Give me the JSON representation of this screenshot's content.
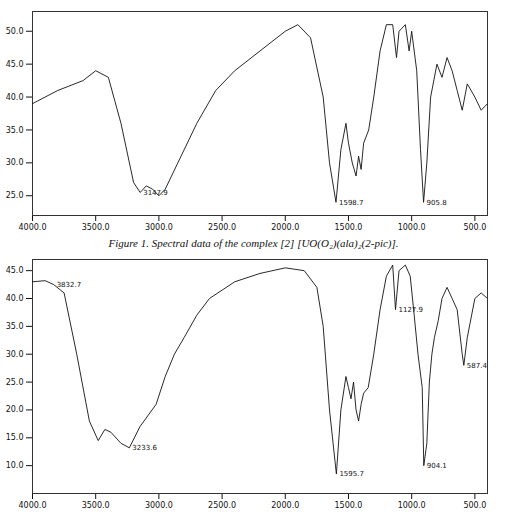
{
  "chart_data": [
    {
      "type": "line",
      "caption": "Figure 1. Spectral data of the complex [2] [UO(O₂)(ala)₂(2-pic)].",
      "color": "#111111",
      "grid": false,
      "xlim": [
        4000,
        400
      ],
      "xticks": [
        {
          "value": 4000,
          "label": "4000.0"
        },
        {
          "value": 3500,
          "label": "3500.0"
        },
        {
          "value": 3000,
          "label": "3000.0"
        },
        {
          "value": 2500,
          "label": "2500.0"
        },
        {
          "value": 2000,
          "label": "2000.0"
        },
        {
          "value": 1500,
          "label": "1500.0"
        },
        {
          "value": 1000,
          "label": "1000.0"
        },
        {
          "value": 500,
          "label": "500.0"
        }
      ],
      "ylim": [
        22,
        53
      ],
      "yticks": [
        {
          "value": 25,
          "label": "25.0"
        },
        {
          "value": 30,
          "label": "30.0"
        },
        {
          "value": 35,
          "label": "35.0"
        },
        {
          "value": 40,
          "label": "40.0"
        },
        {
          "value": 45,
          "label": "45.0"
        },
        {
          "value": 50,
          "label": "50.0"
        }
      ],
      "x": [
        4000,
        3800,
        3600,
        3500,
        3400,
        3300,
        3200,
        3147.9,
        3100,
        3050,
        3000,
        2950,
        2850,
        2700,
        2550,
        2400,
        2200,
        2000,
        1900,
        1800,
        1700,
        1650,
        1598.7,
        1560,
        1520,
        1500,
        1470,
        1440,
        1420,
        1400,
        1380,
        1340,
        1300,
        1250,
        1200,
        1150,
        1120,
        1100,
        1050,
        1020,
        1000,
        960,
        930,
        905.8,
        880,
        850,
        800,
        760,
        720,
        680,
        640,
        600,
        560,
        500,
        450,
        400
      ],
      "values": [
        39,
        41,
        42.5,
        44,
        43,
        36,
        27,
        25.5,
        26.5,
        26,
        25,
        26,
        30,
        36,
        41,
        44,
        47,
        50,
        51,
        49,
        40,
        30,
        24,
        32,
        36,
        33,
        30,
        28,
        31,
        29,
        33,
        35,
        40,
        47,
        51,
        51,
        46,
        50,
        51,
        47,
        50,
        44,
        32,
        24,
        30,
        40,
        45,
        43,
        46,
        44,
        41,
        38,
        42,
        40,
        38,
        39
      ],
      "annotations": [
        {
          "x": 3147.9,
          "text": "3147.9"
        },
        {
          "x": 1598.7,
          "text": "1598.7"
        },
        {
          "x": 905.8,
          "text": "905.8"
        }
      ]
    },
    {
      "type": "line",
      "color": "#111111",
      "grid": false,
      "xlim": [
        4000,
        400
      ],
      "xticks": [
        {
          "value": 4000,
          "label": "4000.0"
        },
        {
          "value": 3500,
          "label": "3500.0"
        },
        {
          "value": 3000,
          "label": "3000.0"
        },
        {
          "value": 2500,
          "label": "2500.0"
        },
        {
          "value": 2000,
          "label": "2000.0"
        },
        {
          "value": 1500,
          "label": "1500.0"
        },
        {
          "value": 1000,
          "label": "1000.0"
        },
        {
          "value": 500,
          "label": "500.0"
        }
      ],
      "ylim": [
        5,
        47
      ],
      "yticks": [
        {
          "value": 10,
          "label": "10.0"
        },
        {
          "value": 15,
          "label": "15.0"
        },
        {
          "value": 20,
          "label": "20.0"
        },
        {
          "value": 25,
          "label": "25.0"
        },
        {
          "value": 30,
          "label": "30.0"
        },
        {
          "value": 35,
          "label": "35.0"
        },
        {
          "value": 40,
          "label": "40.0"
        },
        {
          "value": 45,
          "label": "45.0"
        }
      ],
      "x": [
        4000,
        3900,
        3832.7,
        3750,
        3650,
        3550,
        3480,
        3427,
        3380,
        3300,
        3233.6,
        3150,
        3022,
        2950,
        2877.5,
        2800,
        2700,
        2600,
        2400,
        2200,
        2000,
        1850,
        1750,
        1700,
        1650,
        1595.7,
        1560,
        1520,
        1500,
        1480,
        1460,
        1440,
        1420,
        1400,
        1380,
        1344,
        1300,
        1250,
        1200,
        1150,
        1127.9,
        1100,
        1050,
        1011.4,
        980,
        950,
        916.5,
        904.1,
        880,
        860,
        840,
        820,
        790,
        760,
        720,
        680,
        640,
        600,
        587.4,
        560,
        500,
        450,
        400
      ],
      "values": [
        43,
        43.2,
        42.5,
        41,
        30,
        18,
        14.5,
        16.5,
        16,
        14,
        13.2,
        17,
        21,
        26,
        30,
        33,
        37,
        40,
        43,
        44.5,
        45.5,
        45,
        42,
        35,
        20,
        8.5,
        20,
        26,
        24,
        22,
        25,
        20,
        18,
        21,
        23,
        24,
        30,
        38,
        44,
        46,
        38,
        45,
        46,
        44,
        37,
        30,
        24,
        10,
        14,
        25,
        30,
        33,
        36,
        40,
        42,
        40,
        38,
        30,
        28,
        33,
        40,
        41,
        40
      ],
      "annotations": [
        {
          "x": 3832.7,
          "text": "3832.7"
        },
        {
          "x": 3233.6,
          "text": "3233.6"
        },
        {
          "x": 1595.7,
          "text": "1595.7"
        },
        {
          "x": 1127.9,
          "text": "1127.9"
        },
        {
          "x": 904.1,
          "text": "904.1"
        },
        {
          "x": 587.4,
          "text": "587.4"
        }
      ]
    }
  ]
}
